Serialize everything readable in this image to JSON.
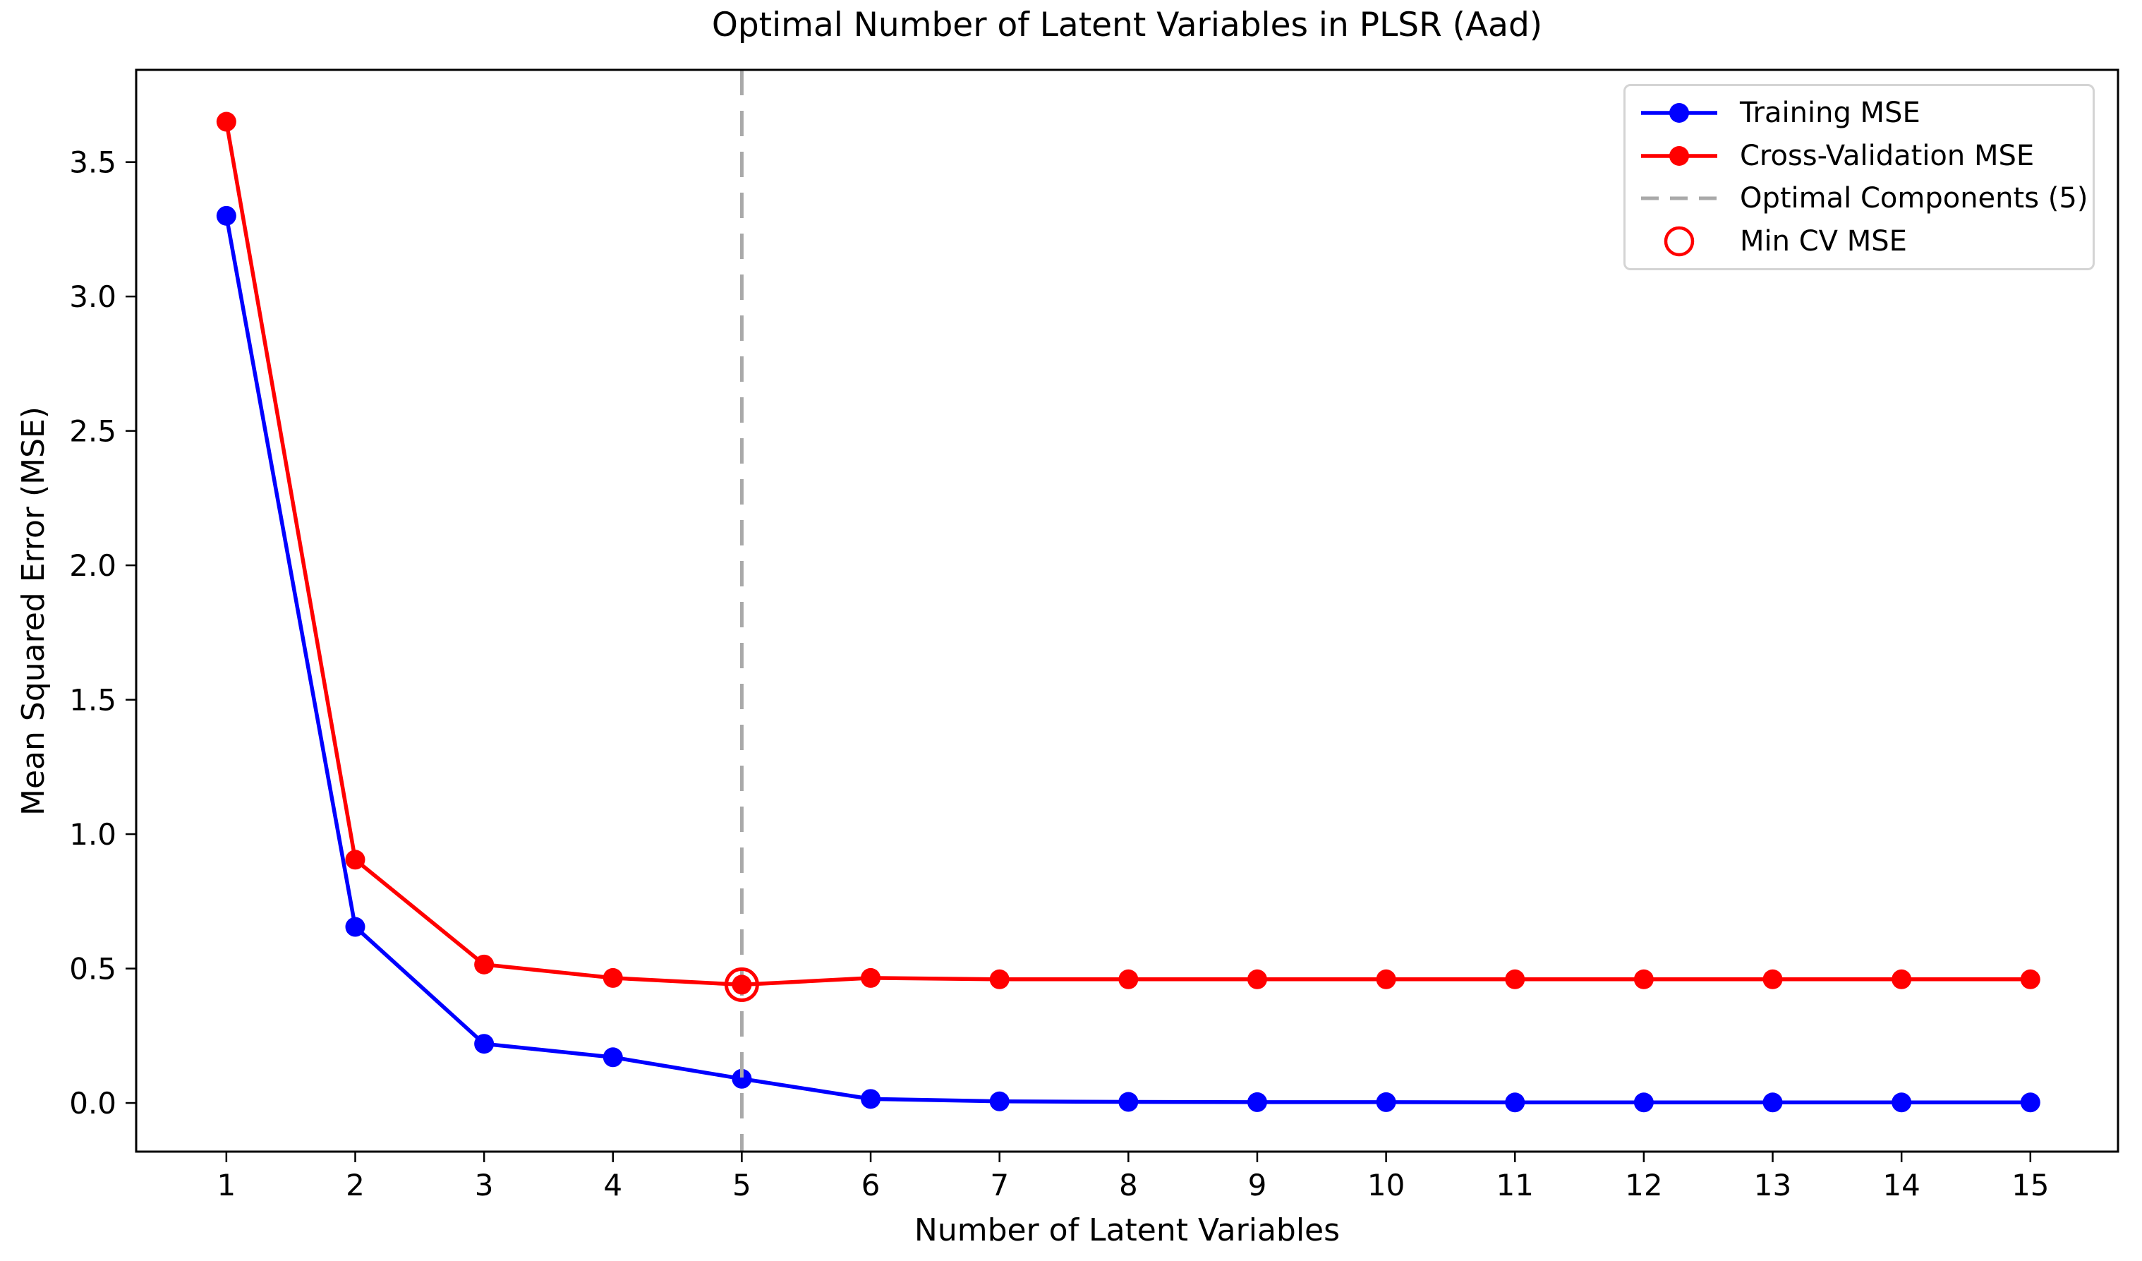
{
  "chart_data": {
    "type": "line",
    "title": "Optimal Number of Latent Variables in PLSR (Aad)",
    "xlabel": "Number of Latent Variables",
    "ylabel": "Mean Squared Error (MSE)",
    "x": [
      1,
      2,
      3,
      4,
      5,
      6,
      7,
      8,
      9,
      10,
      11,
      12,
      13,
      14,
      15
    ],
    "xticks": [
      "1",
      "2",
      "3",
      "4",
      "5",
      "6",
      "7",
      "8",
      "9",
      "10",
      "11",
      "12",
      "13",
      "14",
      "15"
    ],
    "ytick_values": [
      0.0,
      0.5,
      1.0,
      1.5,
      2.0,
      2.5,
      3.0,
      3.5
    ],
    "yticks": [
      "0.0",
      "0.5",
      "1.0",
      "1.5",
      "2.0",
      "2.5",
      "3.0",
      "3.5"
    ],
    "xlim": [
      0.3,
      15.68
    ],
    "ylim": [
      -0.181,
      3.843
    ],
    "grid": false,
    "series": [
      {
        "name": "Training MSE",
        "color": "#0000ff",
        "marker": "circle",
        "values": [
          3.3,
          0.655,
          0.22,
          0.17,
          0.09,
          0.015,
          0.006,
          0.004,
          0.003,
          0.003,
          0.002,
          0.002,
          0.002,
          0.002,
          0.002
        ]
      },
      {
        "name": "Cross-Validation MSE",
        "color": "#ff0000",
        "marker": "circle",
        "values": [
          3.65,
          0.905,
          0.515,
          0.465,
          0.44,
          0.465,
          0.46,
          0.46,
          0.46,
          0.46,
          0.46,
          0.46,
          0.46,
          0.46,
          0.46
        ]
      }
    ],
    "vline": {
      "label": "Optimal Components (5)",
      "x": 5,
      "color": "#a9a9a9",
      "style": "dashed"
    },
    "min_marker": {
      "label": "Min CV MSE",
      "x": 5,
      "y": 0.44,
      "color": "#ff0000",
      "marker": "open-circle"
    },
    "legend": {
      "position": "upper-right",
      "entries": [
        {
          "label": "Training MSE",
          "swatch": "line-dot",
          "color": "#0000ff"
        },
        {
          "label": "Cross-Validation MSE",
          "swatch": "line-dot",
          "color": "#ff0000"
        },
        {
          "label": "Optimal Components (5)",
          "swatch": "dashed-line",
          "color": "#a9a9a9"
        },
        {
          "label": "Min CV MSE",
          "swatch": "open-circle",
          "color": "#ff0000"
        }
      ]
    }
  }
}
